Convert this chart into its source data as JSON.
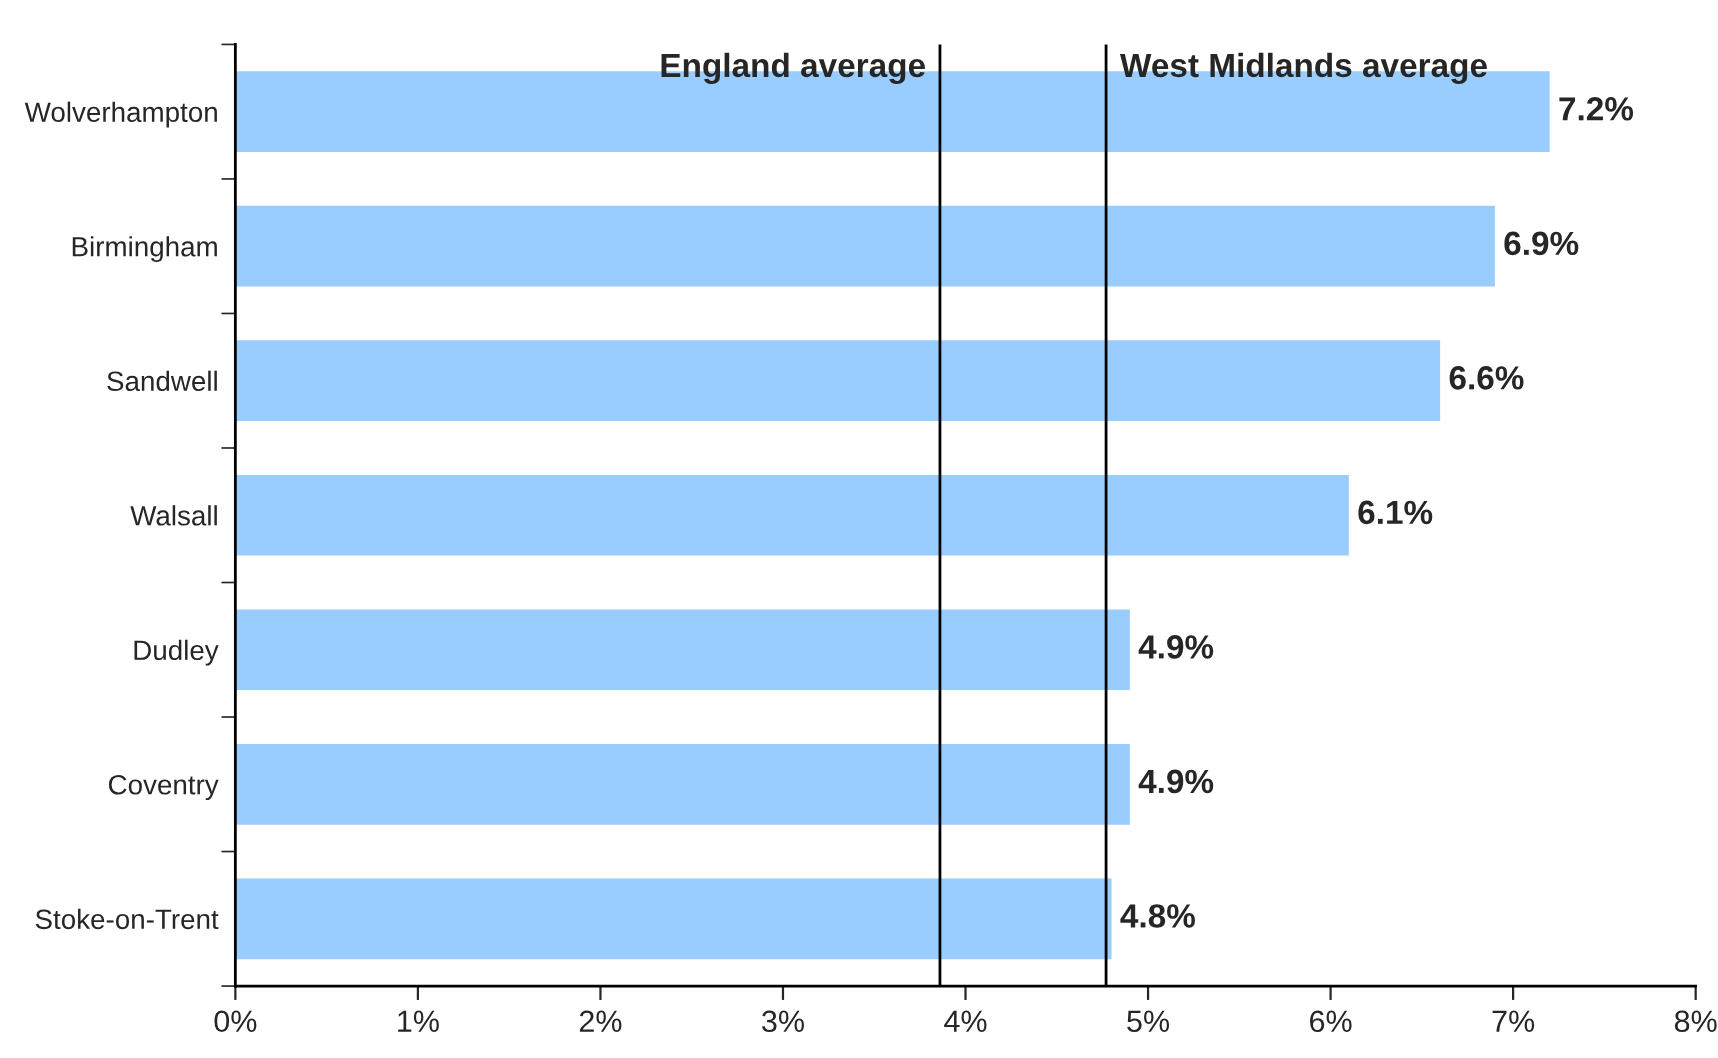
{
  "chart_data": {
    "type": "bar",
    "orientation": "horizontal",
    "categories": [
      "Wolverhampton",
      "Birmingham",
      "Sandwell",
      "Walsall",
      "Dudley",
      "Coventry",
      "Stoke-on-Trent"
    ],
    "values": [
      7.2,
      6.9,
      6.6,
      6.1,
      4.9,
      4.9,
      4.8
    ],
    "value_labels": [
      "7.2%",
      "6.9%",
      "6.6%",
      "6.1%",
      "4.9%",
      "4.9%",
      "4.8%"
    ],
    "color": "#99ccff",
    "xlim": [
      0,
      8
    ],
    "xticks": [
      {
        "value": 0,
        "label": "0%"
      },
      {
        "value": 1,
        "label": "1%"
      },
      {
        "value": 2,
        "label": "2%"
      },
      {
        "value": 3,
        "label": "3%"
      },
      {
        "value": 4,
        "label": "4%"
      },
      {
        "value": 5,
        "label": "5%"
      },
      {
        "value": 6,
        "label": "6%"
      },
      {
        "value": 7,
        "label": "7%"
      },
      {
        "value": 8,
        "label": "8%"
      }
    ],
    "ref_lines": [
      {
        "axis": "x",
        "value": 3.86,
        "label": "England average",
        "color": "#000000"
      },
      {
        "axis": "x",
        "value": 4.77,
        "label": "West Midlands average",
        "color": "#000000"
      }
    ],
    "grid": false,
    "legend": false
  }
}
